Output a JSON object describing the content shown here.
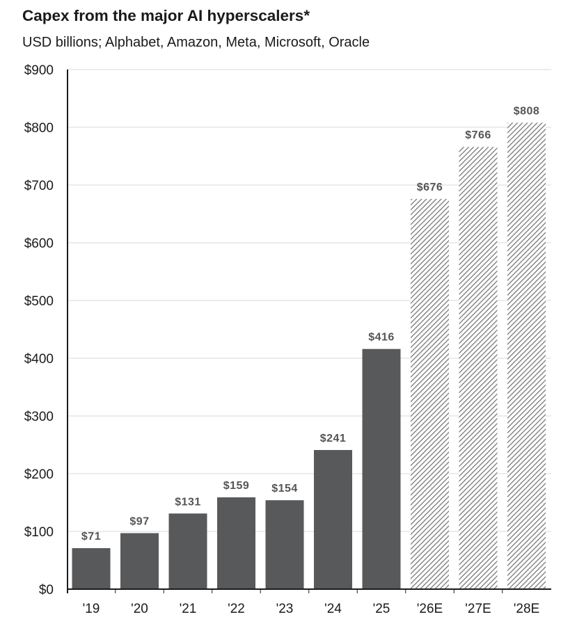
{
  "chart_data": {
    "type": "bar",
    "title": "Capex from the major AI hyperscalers*",
    "subtitle": "USD billions; Alphabet, Amazon, Meta, Microsoft, Oracle",
    "xlabel": "",
    "ylabel": "",
    "ylim": [
      0,
      900
    ],
    "yticks": [
      0,
      100,
      200,
      300,
      400,
      500,
      600,
      700,
      800,
      900
    ],
    "ytick_labels": [
      "$0",
      "$100",
      "$200",
      "$300",
      "$400",
      "$500",
      "$600",
      "$700",
      "$800",
      "$900"
    ],
    "grid": true,
    "categories": [
      "'19",
      "'20",
      "'21",
      "'22",
      "'23",
      "'24",
      "'25",
      "'26E",
      "'27E",
      "'28E"
    ],
    "values": [
      71,
      97,
      131,
      159,
      154,
      241,
      416,
      676,
      766,
      808
    ],
    "data_labels": [
      "$71",
      "$97",
      "$131",
      "$159",
      "$154",
      "$241",
      "$416",
      "$676",
      "$766",
      "$808"
    ],
    "estimated": [
      false,
      false,
      false,
      false,
      false,
      false,
      false,
      true,
      true,
      true
    ],
    "colors": {
      "actual": "#58595b",
      "estimate_hatch": "#6e6e6e",
      "grid": "#d9d9d9",
      "axis": "#1a1a1a",
      "label": "#555555"
    }
  }
}
